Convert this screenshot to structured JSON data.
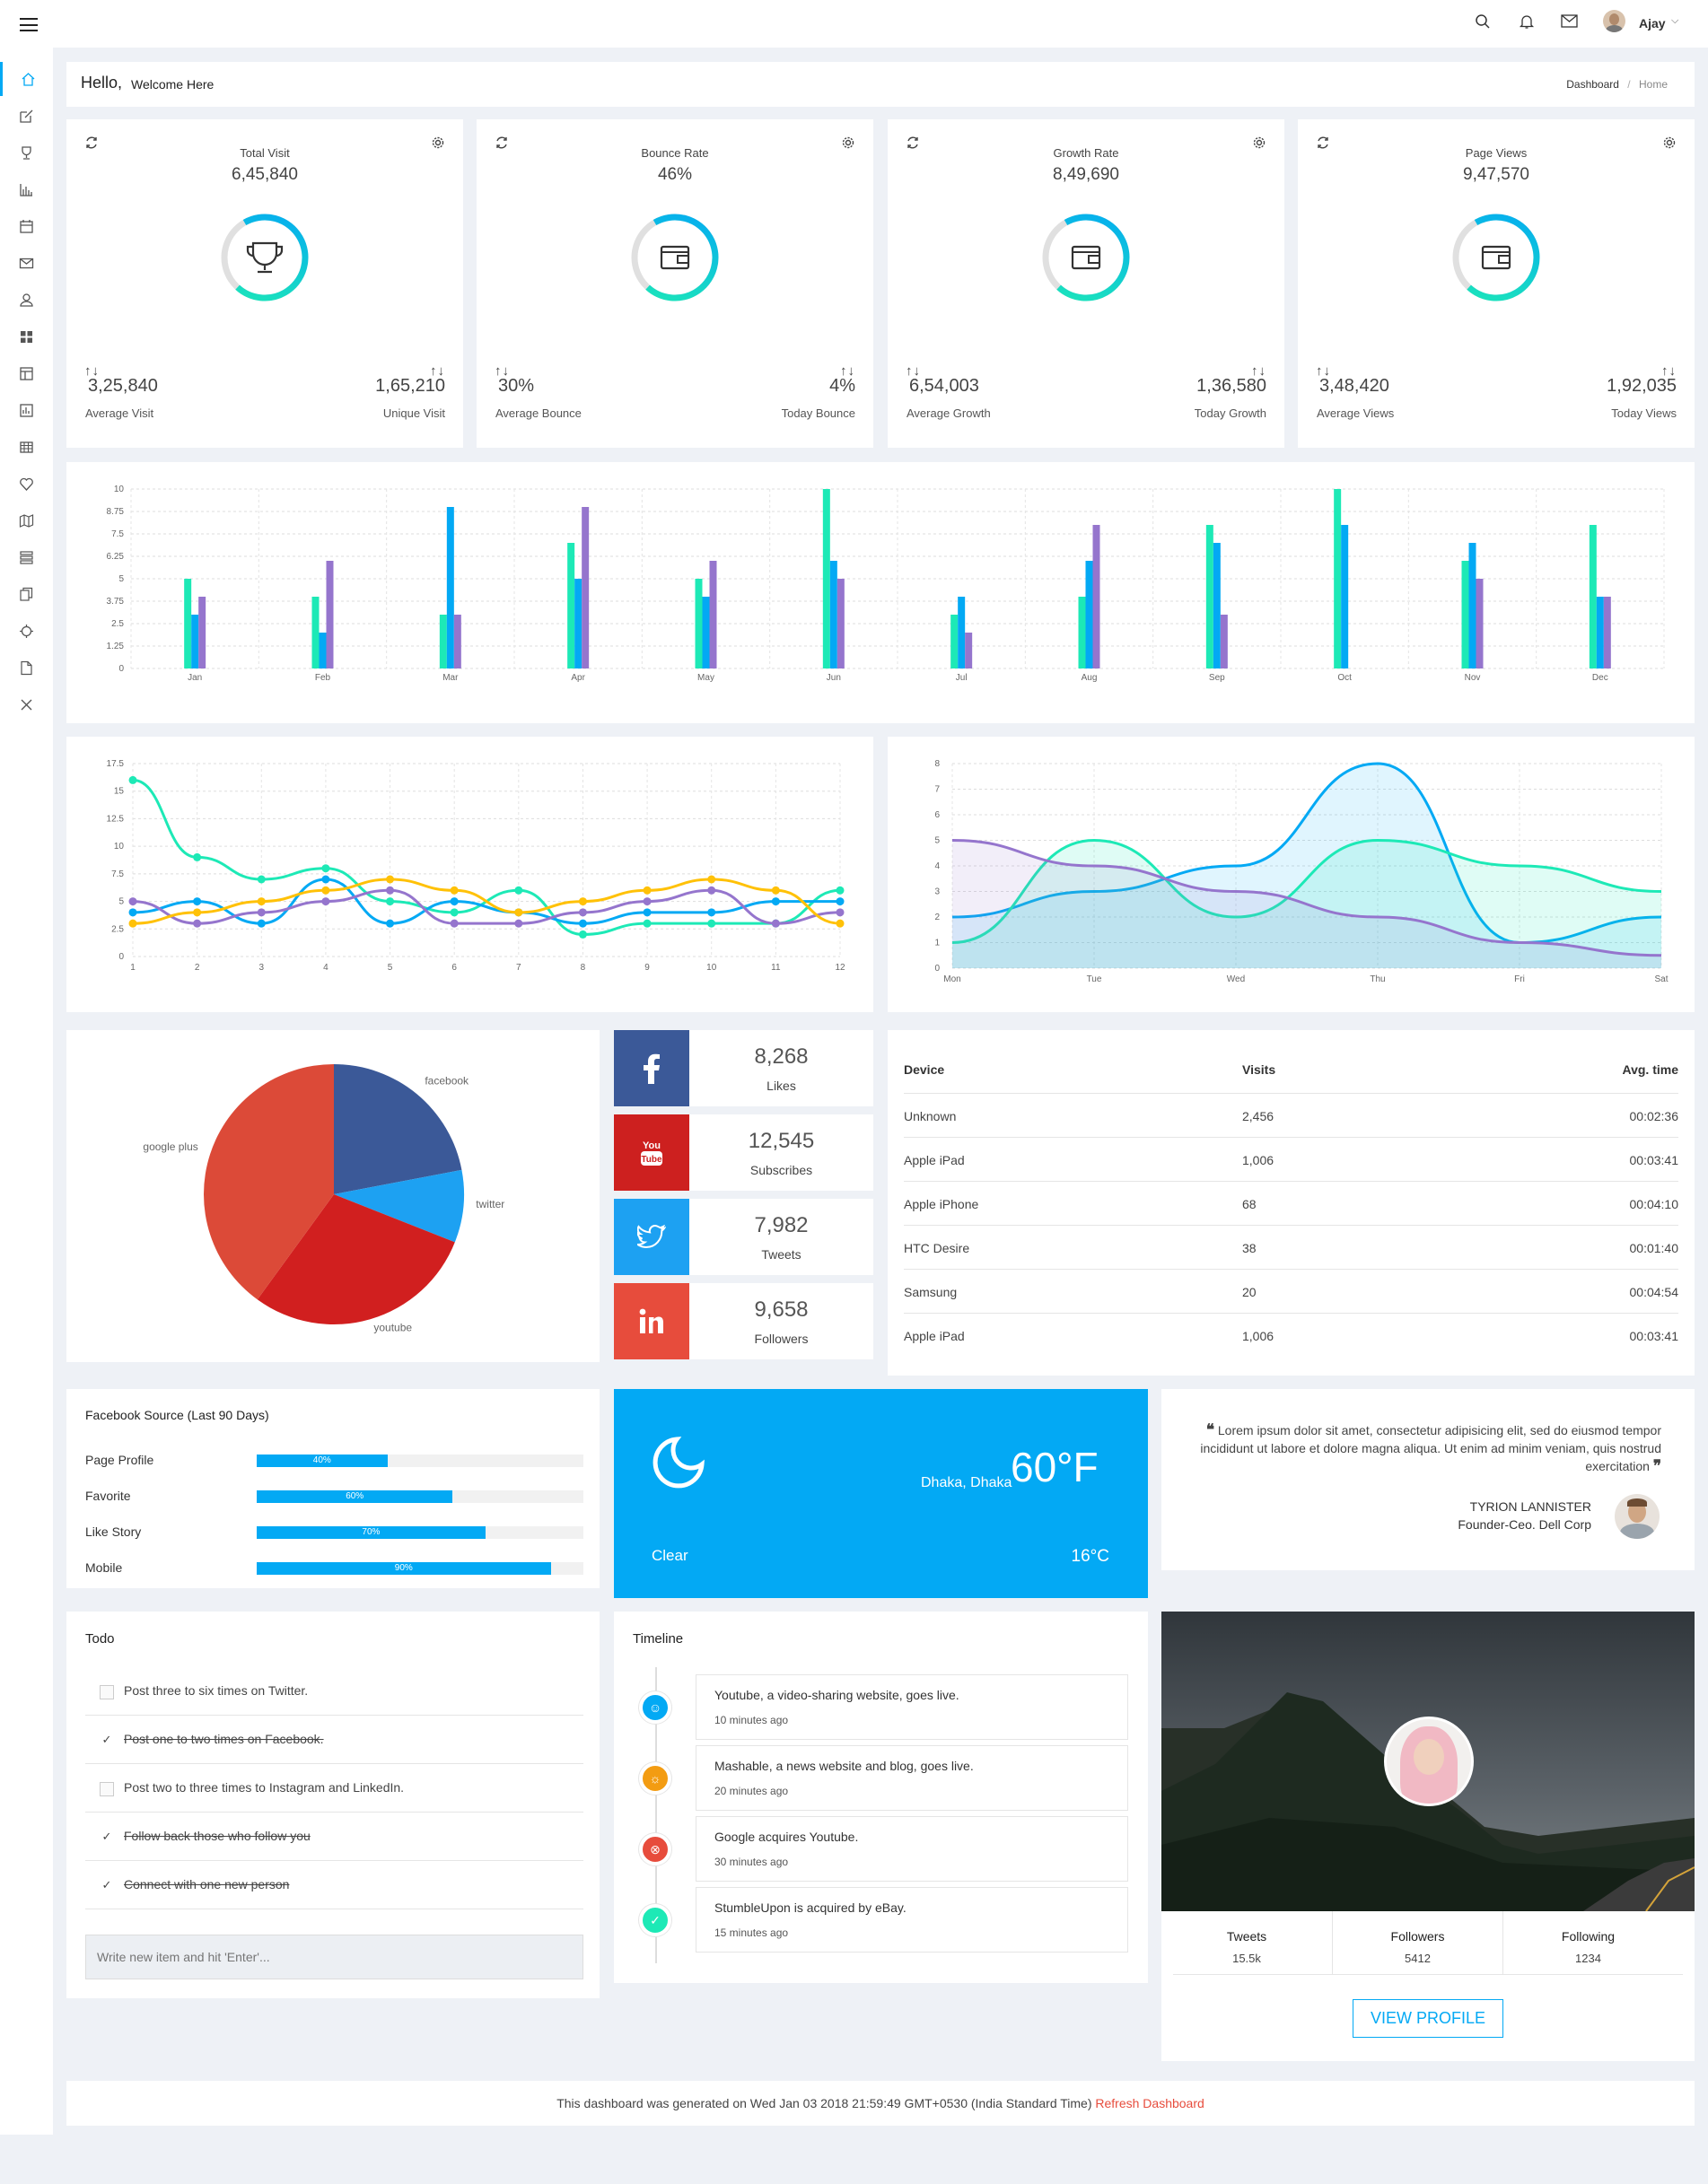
{
  "header": {
    "user_name": "Ajay"
  },
  "welcome": {
    "hello": "Hello,",
    "sub": "Welcome Here",
    "breadcrumb_1": "Dashboard",
    "breadcrumb_sep": "/",
    "breadcrumb_2": "Home"
  },
  "stats": [
    {
      "title": "Total Visit",
      "value": "6,45,840",
      "left_value": "3,25,840",
      "left_label": "Average Visit",
      "right_value": "1,65,210",
      "right_label": "Unique Visit",
      "icon": "trophy-icon",
      "progress": 0.7
    },
    {
      "title": "Bounce Rate",
      "value": "46%",
      "left_value": "30%",
      "left_label": "Average Bounce",
      "right_value": "4%",
      "right_label": "Today Bounce",
      "icon": "wallet-icon",
      "progress": 0.7
    },
    {
      "title": "Growth Rate",
      "value": "8,49,690",
      "left_value": "6,54,003",
      "left_label": "Average Growth",
      "right_value": "1,36,580",
      "right_label": "Today Growth",
      "icon": "wallet-icon",
      "progress": 0.7
    },
    {
      "title": "Page Views",
      "value": "9,47,570",
      "left_value": "3,48,420",
      "left_label": "Average Views",
      "right_value": "1,92,035",
      "right_label": "Today Views",
      "icon": "wallet-icon",
      "progress": 0.7
    }
  ],
  "arrows": "↑↓",
  "chart_data": [
    {
      "type": "bar",
      "categories": [
        "Jan",
        "Feb",
        "Mar",
        "Apr",
        "May",
        "Jun",
        "Jul",
        "Aug",
        "Sep",
        "Oct",
        "Nov",
        "Dec"
      ],
      "series": [
        {
          "color": "#1de9b6",
          "values": [
            5,
            4,
            3,
            7,
            5,
            10,
            3,
            4,
            8,
            10,
            6,
            8
          ]
        },
        {
          "color": "#03a9f4",
          "values": [
            3,
            2,
            9,
            5,
            4,
            6,
            4,
            6,
            7,
            8,
            7,
            4
          ]
        },
        {
          "color": "#9575cd",
          "values": [
            4,
            6,
            3,
            9,
            6,
            5,
            2,
            8,
            3,
            0,
            5,
            4
          ]
        }
      ],
      "ylim": [
        0,
        10
      ],
      "yticks": [
        "0",
        "1.25",
        "2.5",
        "3.75",
        "5",
        "6.25",
        "7.5",
        "8.75",
        "10"
      ]
    },
    {
      "type": "line",
      "x": [
        "1",
        "2",
        "3",
        "4",
        "5",
        "6",
        "7",
        "8",
        "9",
        "10",
        "11",
        "12"
      ],
      "series": [
        {
          "color": "#1de9b6",
          "values": [
            16,
            9,
            7,
            8,
            5,
            4,
            6,
            2,
            3,
            3,
            3,
            6
          ]
        },
        {
          "color": "#03a9f4",
          "values": [
            4,
            5,
            3,
            7,
            3,
            5,
            4,
            3,
            4,
            4,
            5,
            5
          ]
        },
        {
          "color": "#9575cd",
          "values": [
            5,
            3,
            4,
            5,
            6,
            3,
            3,
            4,
            5,
            6,
            3,
            4
          ]
        },
        {
          "color": "#ffc107",
          "values": [
            3,
            4,
            5,
            6,
            7,
            6,
            4,
            5,
            6,
            7,
            6,
            3
          ]
        }
      ],
      "ylim": [
        0,
        17.5
      ],
      "yticks": [
        "0",
        "2.5",
        "5",
        "7.5",
        "10",
        "12.5",
        "15",
        "17.5"
      ]
    },
    {
      "type": "area",
      "categories": [
        "Mon",
        "Tue",
        "Wed",
        "Thu",
        "Fri",
        "Sat"
      ],
      "series": [
        {
          "color": "#03a9f4",
          "values": [
            2,
            3,
            4,
            8,
            1,
            2
          ]
        },
        {
          "color": "#1de9b6",
          "values": [
            1,
            5,
            2,
            5,
            4,
            3
          ]
        },
        {
          "color": "#9575cd",
          "values": [
            5,
            4,
            3,
            2,
            1,
            0.5
          ]
        }
      ],
      "ylim": [
        0,
        8
      ],
      "yticks": [
        "0",
        "1",
        "2",
        "3",
        "4",
        "5",
        "6",
        "7",
        "8"
      ]
    },
    {
      "type": "pie",
      "labels": [
        "facebook",
        "twitter",
        "youtube",
        "google plus"
      ],
      "values": [
        22,
        9,
        29,
        40
      ],
      "colors": [
        "#3b5998",
        "#1da1f2",
        "#d11f1f",
        "#dc4a38"
      ]
    }
  ],
  "social": [
    {
      "name": "facebook",
      "value": "8,268",
      "label": "Likes",
      "color": "#3b5998",
      "icon": "facebook-icon"
    },
    {
      "name": "youtube",
      "value": "12,545",
      "label": "Subscribes",
      "color": "#cd201f",
      "icon": "youtube-icon"
    },
    {
      "name": "twitter",
      "value": "7,982",
      "label": "Tweets",
      "color": "#1da1f2",
      "icon": "twitter-icon"
    },
    {
      "name": "linkedin",
      "value": "9,658",
      "label": "Followers",
      "color": "#e74c3c",
      "icon": "linkedin-icon"
    }
  ],
  "devices": {
    "headers": [
      "Device",
      "Visits",
      "Avg. time"
    ],
    "rows": [
      [
        "Unknown",
        "2,456",
        "00:02:36"
      ],
      [
        "Apple iPad",
        "1,006",
        "00:03:41"
      ],
      [
        "Apple iPhone",
        "68",
        "00:04:10"
      ],
      [
        "HTC Desire",
        "38",
        "00:01:40"
      ],
      [
        "Samsung",
        "20",
        "00:04:54"
      ],
      [
        "Apple iPad",
        "1,006",
        "00:03:41"
      ]
    ]
  },
  "fb_source": {
    "title": "Facebook Source (Last 90 Days)",
    "items": [
      {
        "label": "Page Profile",
        "value": 40,
        "text": "40%"
      },
      {
        "label": "Favorite",
        "value": 60,
        "text": "60%"
      },
      {
        "label": "Like Story",
        "value": 70,
        "text": "70%"
      },
      {
        "label": "Mobile",
        "value": 90,
        "text": "90%"
      }
    ]
  },
  "weather": {
    "location": "Dhaka, Dhaka",
    "temp_f": "60°F",
    "condition": "Clear",
    "temp_c": "16°C",
    "color": "#03a9f4"
  },
  "quote": {
    "text": "Lorem ipsum dolor sit amet, consectetur adipisicing elit, sed do eiusmod tempor incididunt ut labore et dolore magna aliqua. Ut enim ad minim veniam, quis nostrud exercitation",
    "name": "TYRION LANNISTER",
    "role": "Founder-Ceo. Dell Corp"
  },
  "todo": {
    "title": "Todo",
    "items": [
      {
        "text": "Post three to six times on Twitter.",
        "done": false
      },
      {
        "text": "Post one to two times on Facebook.",
        "done": true
      },
      {
        "text": "Post two to three times to Instagram and LinkedIn.",
        "done": false
      },
      {
        "text": "Follow back those who follow you",
        "done": true
      },
      {
        "text": "Connect with one new person",
        "done": true
      }
    ],
    "placeholder": "Write new item and hit 'Enter'..."
  },
  "timeline": {
    "title": "Timeline",
    "items": [
      {
        "title": "Youtube, a video-sharing website, goes live.",
        "time": "10 minutes ago",
        "color": "#03a9f4"
      },
      {
        "title": "Mashable, a news website and blog, goes live.",
        "time": "20 minutes ago",
        "color": "#f39c12"
      },
      {
        "title": "Google acquires Youtube.",
        "time": "30 minutes ago",
        "color": "#e74c3c"
      },
      {
        "title": "StumbleUpon is acquired by eBay.",
        "time": "15 minutes ago",
        "color": "#1de9b6"
      }
    ]
  },
  "profile": {
    "stats": [
      {
        "label": "Tweets",
        "value": "15.5k"
      },
      {
        "label": "Followers",
        "value": "5412"
      },
      {
        "label": "Following",
        "value": "1234"
      }
    ],
    "button": "VIEW PROFILE"
  },
  "footer": {
    "text": "This dashboard was generated on Wed Jan 03 2018 21:59:49 GMT+0530 (India Standard Time)",
    "link": "Refresh Dashboard"
  }
}
